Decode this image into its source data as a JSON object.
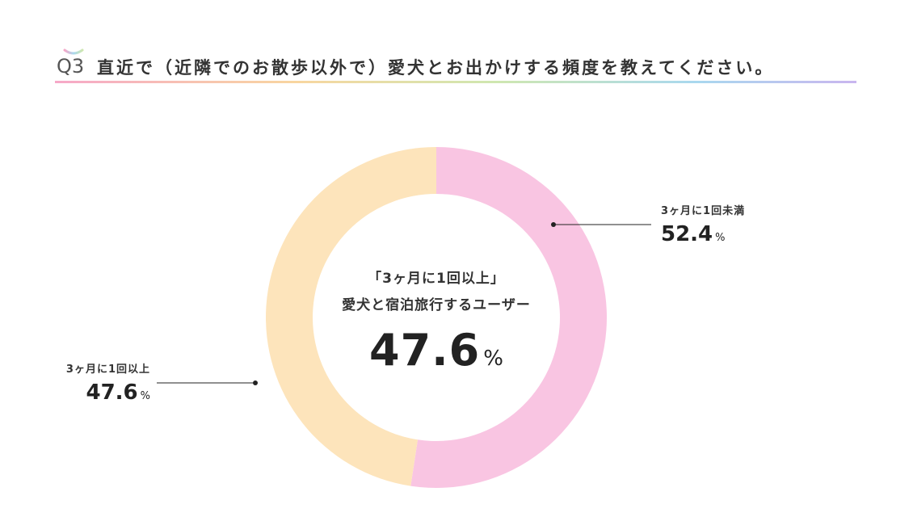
{
  "header": {
    "q_label": "Q3",
    "title": "直近で（近隣でのお散歩以外で）愛犬とお出かけする頻度を教えてください。"
  },
  "center": {
    "line1": "「3ヶ月に1回以上」",
    "line2": "愛犬と宿泊旅行するユーザー",
    "value": "47.6",
    "unit": "%"
  },
  "chart_data": {
    "type": "pie",
    "variant": "donut",
    "unit": "%",
    "series": [
      {
        "name": "3ヶ月に1回未満",
        "value": 52.4,
        "value_label": "52.4",
        "color": "#f9c5e2"
      },
      {
        "name": "3ヶ月に1回以上",
        "value": 47.6,
        "value_label": "47.6",
        "color": "#fde4bb"
      }
    ],
    "legend": "callout-labels"
  },
  "colors": {
    "title_text": "#333333",
    "leader_line": "#222222"
  }
}
